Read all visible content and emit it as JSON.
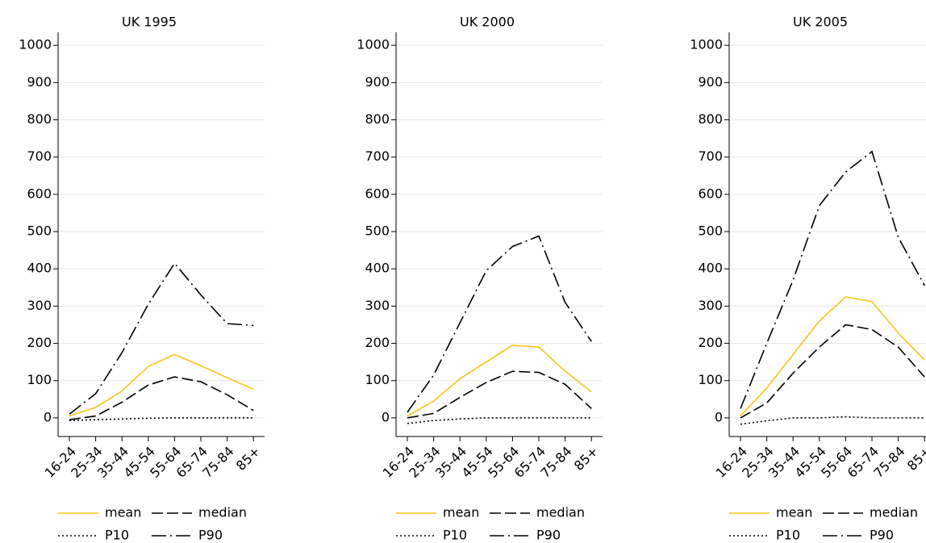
{
  "chart_data": [
    {
      "type": "line",
      "title": "UK 1995",
      "categories": [
        "16-24",
        "25-34",
        "35-44",
        "45-54",
        "55-64",
        "65-74",
        "75-84",
        "85+"
      ],
      "ylim": [
        -50,
        1035
      ],
      "yticks": [
        0,
        100,
        200,
        300,
        400,
        500,
        600,
        700,
        800,
        900,
        1000
      ],
      "grid": true,
      "legend": "bottom",
      "series": [
        {
          "name": "mean",
          "color": "#f5c518",
          "line_style": "solid",
          "values": [
            5,
            28,
            72,
            138,
            170,
            140,
            108,
            77
          ]
        },
        {
          "name": "median",
          "color": "#000000",
          "line_style": "dashed",
          "values": [
            -5,
            5,
            42,
            88,
            110,
            97,
            62,
            20
          ]
        },
        {
          "name": "P10",
          "color": "#000000",
          "line_style": "dotted",
          "values": [
            -7,
            -5,
            -3,
            -1,
            0,
            0,
            0,
            0
          ]
        },
        {
          "name": "P90",
          "color": "#000000",
          "line_style": "dash-dot",
          "values": [
            10,
            65,
            175,
            305,
            415,
            330,
            253,
            248
          ]
        }
      ]
    },
    {
      "type": "line",
      "title": "UK 2000",
      "categories": [
        "16-24",
        "25-34",
        "35-44",
        "45-54",
        "55-64",
        "65-74",
        "75-84",
        "85+"
      ],
      "ylim": [
        -50,
        1035
      ],
      "yticks": [
        0,
        100,
        200,
        300,
        400,
        500,
        600,
        700,
        800,
        900,
        1000
      ],
      "grid": true,
      "legend": "bottom",
      "series": [
        {
          "name": "mean",
          "color": "#f5c518",
          "line_style": "solid",
          "values": [
            5,
            45,
            105,
            150,
            195,
            190,
            125,
            70
          ]
        },
        {
          "name": "median",
          "color": "#000000",
          "line_style": "dashed",
          "values": [
            0,
            12,
            55,
            95,
            125,
            122,
            90,
            25
          ]
        },
        {
          "name": "P10",
          "color": "#000000",
          "line_style": "dotted",
          "values": [
            -15,
            -7,
            -3,
            0,
            0,
            0,
            0,
            0
          ]
        },
        {
          "name": "P90",
          "color": "#000000",
          "line_style": "dash-dot",
          "values": [
            15,
            115,
            255,
            395,
            460,
            488,
            310,
            205
          ]
        }
      ]
    },
    {
      "type": "line",
      "title": "UK 2005",
      "categories": [
        "16-24",
        "25-34",
        "35-44",
        "45-54",
        "55-64",
        "65-74",
        "75-84",
        "85+"
      ],
      "ylim": [
        -50,
        1035
      ],
      "yticks": [
        0,
        100,
        200,
        300,
        400,
        500,
        600,
        700,
        800,
        900,
        1000
      ],
      "grid": true,
      "legend": "bottom",
      "series": [
        {
          "name": "mean",
          "color": "#f5c518",
          "line_style": "solid",
          "values": [
            5,
            80,
            170,
            260,
            325,
            312,
            228,
            155
          ]
        },
        {
          "name": "median",
          "color": "#000000",
          "line_style": "dashed",
          "values": [
            0,
            40,
            120,
            190,
            250,
            237,
            190,
            110
          ]
        },
        {
          "name": "P10",
          "color": "#000000",
          "line_style": "dotted",
          "values": [
            -17,
            -8,
            0,
            0,
            3,
            0,
            0,
            0
          ]
        },
        {
          "name": "P90",
          "color": "#000000",
          "line_style": "dash-dot",
          "values": [
            25,
            200,
            370,
            570,
            660,
            715,
            485,
            355
          ]
        }
      ]
    }
  ]
}
